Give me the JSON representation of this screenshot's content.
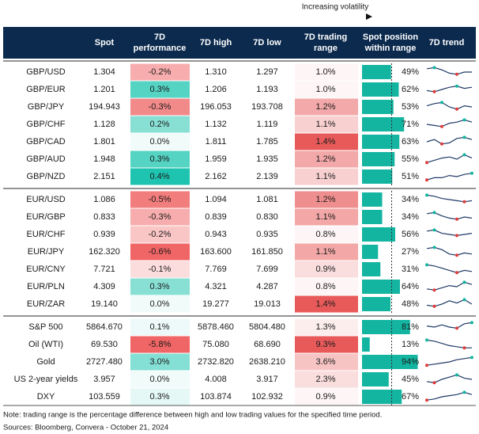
{
  "header": {
    "annotation": "Increasing volatility",
    "columns": [
      "Spot",
      "7D performance",
      "7D high",
      "7D low",
      "7D trading range",
      "Spot position within range",
      "7D trend"
    ]
  },
  "groups": [
    {
      "rows": [
        {
          "name": "GBP/USD",
          "spot": "1.304",
          "perf": "-0.2%",
          "high": "1.310",
          "low": "1.297",
          "range": "1.0%",
          "position": "49%",
          "trend": [
            8,
            9,
            7,
            4,
            3,
            5,
            5
          ]
        },
        {
          "name": "GBP/EUR",
          "spot": "1.201",
          "perf": "0.3%",
          "high": "1.206",
          "low": "1.193",
          "range": "1.0%",
          "position": "62%",
          "trend": [
            4,
            3,
            5,
            7,
            8,
            6,
            7
          ]
        },
        {
          "name": "GBP/JPY",
          "spot": "194.943",
          "perf": "-0.3%",
          "high": "196.053",
          "low": "193.708",
          "range": "1.2%",
          "position": "53%",
          "trend": [
            6,
            8,
            9,
            5,
            3,
            6,
            5
          ]
        },
        {
          "name": "GBP/CHF",
          "spot": "1.128",
          "perf": "0.2%",
          "high": "1.132",
          "low": "1.119",
          "range": "1.1%",
          "position": "71%",
          "trend": [
            5,
            4,
            3,
            6,
            7,
            9,
            7
          ]
        },
        {
          "name": "GBP/CAD",
          "spot": "1.801",
          "perf": "0.0%",
          "high": "1.811",
          "low": "1.785",
          "range": "1.4%",
          "position": "63%",
          "trend": [
            5,
            7,
            3,
            4,
            8,
            9,
            7
          ]
        },
        {
          "name": "GBP/AUD",
          "spot": "1.948",
          "perf": "0.3%",
          "high": "1.959",
          "low": "1.935",
          "range": "1.2%",
          "position": "55%",
          "trend": [
            2,
            4,
            6,
            7,
            5,
            9,
            6
          ]
        },
        {
          "name": "GBP/NZD",
          "spot": "2.151",
          "perf": "0.4%",
          "high": "2.162",
          "low": "2.139",
          "range": "1.1%",
          "position": "51%",
          "trend": [
            2,
            4,
            4,
            6,
            5,
            7,
            8
          ]
        }
      ]
    },
    {
      "rows": [
        {
          "name": "EUR/USD",
          "spot": "1.086",
          "perf": "-0.5%",
          "high": "1.094",
          "low": "1.081",
          "range": "1.2%",
          "position": "34%",
          "trend": [
            9,
            8,
            6,
            5,
            4,
            3,
            4
          ]
        },
        {
          "name": "EUR/GBP",
          "spot": "0.833",
          "perf": "-0.3%",
          "high": "0.839",
          "low": "0.830",
          "range": "1.1%",
          "position": "34%",
          "trend": [
            8,
            9,
            6,
            4,
            3,
            5,
            4
          ]
        },
        {
          "name": "EUR/CHF",
          "spot": "0.939",
          "perf": "-0.2%",
          "high": "0.943",
          "low": "0.935",
          "range": "0.8%",
          "position": "56%",
          "trend": [
            8,
            9,
            6,
            5,
            4,
            5,
            6
          ]
        },
        {
          "name": "EUR/JPY",
          "spot": "162.320",
          "perf": "-0.6%",
          "high": "163.600",
          "low": "161.850",
          "range": "1.1%",
          "position": "27%",
          "trend": [
            8,
            9,
            7,
            3,
            2,
            4,
            3
          ]
        },
        {
          "name": "EUR/CNY",
          "spot": "7.721",
          "perf": "-0.1%",
          "high": "7.769",
          "low": "7.699",
          "range": "0.9%",
          "position": "31%",
          "trend": [
            9,
            8,
            6,
            4,
            2,
            4,
            3
          ]
        },
        {
          "name": "EUR/PLN",
          "spot": "4.309",
          "perf": "0.3%",
          "high": "4.321",
          "low": "4.287",
          "range": "0.8%",
          "position": "64%",
          "trend": [
            3,
            2,
            4,
            6,
            5,
            9,
            7
          ]
        },
        {
          "name": "EUR/ZAR",
          "spot": "19.140",
          "perf": "0.0%",
          "high": "19.277",
          "low": "19.013",
          "range": "1.4%",
          "position": "48%",
          "trend": [
            4,
            3,
            5,
            8,
            6,
            9,
            5
          ]
        }
      ]
    },
    {
      "rows": [
        {
          "name": "S&P 500",
          "spot": "5864.670",
          "perf": "0.1%",
          "high": "5878.460",
          "low": "5804.480",
          "range": "1.3%",
          "position": "81%",
          "trend": [
            6,
            5,
            7,
            5,
            4,
            8,
            9
          ]
        },
        {
          "name": "Oil (WTI)",
          "spot": "69.530",
          "perf": "-5.8%",
          "high": "75.080",
          "low": "68.690",
          "range": "9.3%",
          "position": "13%",
          "trend": [
            9,
            8,
            6,
            4,
            3,
            2,
            2
          ]
        },
        {
          "name": "Gold",
          "spot": "2727.480",
          "perf": "3.0%",
          "high": "2732.820",
          "low": "2638.210",
          "range": "3.6%",
          "position": "94%",
          "trend": [
            2,
            3,
            4,
            5,
            7,
            8,
            9
          ]
        },
        {
          "name": "US 2-year yields",
          "spot": "3.957",
          "perf": "0.0%",
          "high": "4.008",
          "low": "3.917",
          "range": "2.3%",
          "position": "45%",
          "trend": [
            3,
            2,
            5,
            7,
            9,
            6,
            5
          ]
        },
        {
          "name": "DXY",
          "spot": "103.559",
          "perf": "0.3%",
          "high": "103.874",
          "low": "102.932",
          "range": "0.9%",
          "position": "67%",
          "trend": [
            2,
            3,
            5,
            6,
            7,
            9,
            7
          ]
        }
      ]
    }
  ],
  "notes": [
    "Note: trading range is the percentage difference between high and low trading values for the specified time period.",
    "Sources: Bloomberg, Convera - October 21, 2024"
  ]
}
